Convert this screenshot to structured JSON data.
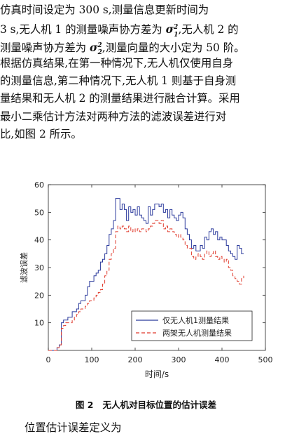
{
  "paragraph1": {
    "line1": "仿真时间设定为 300 s,测量信息更新时间为",
    "line2_a": "3 s,无人机 1 的测量噪声协方差为 ",
    "line2_b": ",无人机 2 的",
    "line3_a": "测量噪声协方差为 ",
    "line3_b": ",测量向量的大小定为 50 阶。",
    "line4": "根据仿真结果,在第一种情况下,无人机仅使用自身",
    "line5": "的测量信息,第二种情况下,无人机 1 则基于自身测",
    "line6": "量结果和无人机 2 的测量结果进行融合计算。采用",
    "line7": "最小二乘估计方法对两种方法的滤波误差进行对",
    "line8": "比,如图 2 所示。",
    "sigma1": "σ",
    "sigma1_sub": "1",
    "sigma1_sup": "2",
    "sigma2": "σ",
    "sigma2_sub": "2",
    "sigma2_sup": "2"
  },
  "caption": {
    "label": "图 2",
    "text": "无人机对目标位置的估计误差"
  },
  "paragraph2": "位置估计误差定义为",
  "chart_data": {
    "type": "line",
    "xlabel": "时间/s",
    "ylabel": "滤波误差",
    "xlim": [
      0,
      500
    ],
    "ylim": [
      0,
      60
    ],
    "xticks": [
      0,
      100,
      200,
      300,
      400,
      500
    ],
    "yticks": [
      10,
      20,
      30,
      40,
      50,
      60
    ],
    "legend_position": "bottom-right",
    "series": [
      {
        "name": "仅无人机1测量结果",
        "color": "#2b3a9c",
        "style": "solid",
        "x": [
          0,
          20,
          25,
          30,
          35,
          40,
          45,
          50,
          55,
          60,
          65,
          70,
          75,
          80,
          85,
          90,
          95,
          100,
          105,
          110,
          115,
          120,
          125,
          130,
          135,
          140,
          145,
          150,
          155,
          160,
          165,
          170,
          175,
          180,
          185,
          190,
          195,
          200,
          205,
          210,
          215,
          220,
          225,
          230,
          235,
          240,
          245,
          250,
          255,
          260,
          265,
          270,
          275,
          280,
          285,
          290,
          295,
          300,
          305,
          310,
          315,
          320,
          325,
          330,
          335,
          340,
          345,
          350,
          355,
          360,
          365,
          370,
          375,
          380,
          385,
          390,
          395,
          400,
          405,
          410,
          415,
          420,
          425,
          430,
          435,
          440,
          445,
          450
        ],
        "y": [
          0,
          1,
          2,
          10,
          11,
          11,
          12,
          12,
          14,
          14,
          15,
          17,
          18,
          18,
          20,
          23,
          25,
          25,
          27,
          28,
          29,
          32,
          33,
          35,
          38,
          42,
          44,
          47,
          55,
          55,
          51,
          53,
          51,
          47,
          52,
          50,
          51,
          49,
          52,
          49,
          48,
          47,
          46,
          52,
          49,
          51,
          53,
          53,
          52,
          53,
          50,
          51,
          48,
          51,
          49,
          48,
          47,
          49,
          50,
          48,
          44,
          42,
          40,
          37,
          38,
          36,
          36,
          38,
          37,
          41,
          40,
          43,
          44,
          42,
          43,
          40,
          41,
          40,
          40,
          38,
          36,
          35,
          34,
          33,
          38,
          37,
          35,
          35
        ]
      },
      {
        "name": "两架无人机测量结果",
        "color": "#e0392b",
        "style": "dashed",
        "x": [
          0,
          20,
          25,
          30,
          35,
          40,
          45,
          50,
          55,
          60,
          65,
          70,
          75,
          80,
          85,
          90,
          95,
          100,
          105,
          110,
          115,
          120,
          125,
          130,
          135,
          140,
          145,
          150,
          155,
          160,
          165,
          170,
          175,
          180,
          185,
          190,
          195,
          200,
          205,
          210,
          215,
          220,
          225,
          230,
          235,
          240,
          245,
          250,
          255,
          260,
          265,
          270,
          275,
          280,
          285,
          290,
          295,
          300,
          305,
          310,
          315,
          320,
          325,
          330,
          335,
          340,
          345,
          350,
          355,
          360,
          365,
          370,
          375,
          380,
          385,
          390,
          395,
          400,
          405,
          410,
          415,
          420,
          425,
          430,
          435,
          440,
          445,
          450
        ],
        "y": [
          0,
          1,
          2,
          8,
          9,
          10,
          10,
          10,
          11,
          12,
          13,
          14,
          15,
          15,
          16,
          17,
          18,
          18,
          19,
          20,
          21,
          22,
          24,
          27,
          29,
          33,
          35,
          37,
          43,
          45,
          44,
          45,
          44,
          43,
          45,
          43,
          44,
          43,
          44,
          43,
          44,
          44,
          43,
          44,
          45,
          46,
          47,
          47,
          46,
          47,
          44,
          45,
          43,
          44,
          43,
          42,
          41,
          42,
          41,
          40,
          38,
          37,
          37,
          34,
          33,
          34,
          35,
          34,
          33,
          35,
          36,
          34,
          35,
          36,
          34,
          33,
          34,
          33,
          32,
          33,
          30,
          29,
          27,
          26,
          25,
          24,
          26,
          27
        ]
      }
    ]
  }
}
